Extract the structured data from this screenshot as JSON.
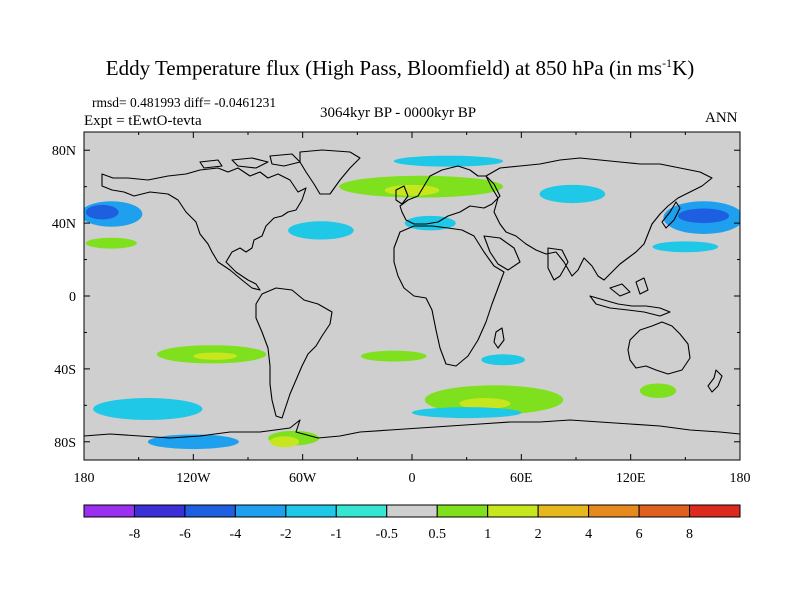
{
  "title": {
    "main": "Eddy Temperature flux (High Pass, Bloomfield) at 850 hPa (in ms",
    "sup": "-1",
    "tail": "K)"
  },
  "stats": {
    "rmsd_diff": "rmsd= 0.481993 diff= -0.0461231",
    "experiment": "Expt = tEwtO-tevta"
  },
  "subtitle": {
    "center": "3064kyr BP - 0000kyr BP",
    "right": "ANN"
  },
  "axes": {
    "lon_labels": [
      "180",
      "120W",
      "60W",
      "0",
      "60E",
      "120E",
      "180"
    ],
    "lat_labels": [
      "80N",
      "40N",
      "0",
      "40S",
      "80S"
    ]
  },
  "chart_data": {
    "type": "heatmap",
    "projection": "cylindrical equidistant",
    "title": "Eddy Temperature flux (High Pass, Bloomfield) at 850 hPa (in ms-1K)",
    "x_range": [
      -180,
      180
    ],
    "y_range": [
      -90,
      90
    ],
    "xticks": [
      -180,
      -120,
      -60,
      0,
      60,
      120,
      180
    ],
    "yticks": [
      80,
      40,
      0,
      -40,
      -80
    ],
    "colorbar": {
      "labels": [
        "-8",
        "-6",
        "-4",
        "-2",
        "-1",
        "-0.5",
        "0.5",
        "1",
        "2",
        "4",
        "6",
        "8"
      ],
      "colors": [
        "#9a2ff0",
        "#3b2fd8",
        "#1d5fe0",
        "#1ea0ee",
        "#1ec8e6",
        "#35e6d2",
        "#cfcfcf",
        "#7fe01e",
        "#c8e61e",
        "#e6b81e",
        "#e68a1e",
        "#e0601e",
        "#dc2b1e"
      ]
    },
    "regions": [
      {
        "name": "north pacific west",
        "center": [
          -165,
          45
        ],
        "half_width": [
          17,
          7
        ],
        "value": -2
      },
      {
        "name": "north pacific west core",
        "center": [
          -170,
          46
        ],
        "half_width": [
          9,
          4
        ],
        "value": -4
      },
      {
        "name": "north pacific 2",
        "center": [
          -165,
          29
        ],
        "half_width": [
          14,
          3
        ],
        "value": 1
      },
      {
        "name": "north pacific east",
        "center": [
          160,
          43
        ],
        "half_width": [
          22,
          9
        ],
        "value": -2
      },
      {
        "name": "north pacific east core",
        "center": [
          160,
          44
        ],
        "half_width": [
          14,
          4
        ],
        "value": -4
      },
      {
        "name": "north pacific east low",
        "center": [
          150,
          27
        ],
        "half_width": [
          18,
          3
        ],
        "value": -1
      },
      {
        "name": "north atlantic band",
        "center": [
          5,
          60
        ],
        "half_width": [
          45,
          6
        ],
        "value": 1
      },
      {
        "name": "north atlantic core",
        "center": [
          0,
          58
        ],
        "half_width": [
          15,
          3
        ],
        "value": 2
      },
      {
        "name": "north atlantic south",
        "center": [
          -50,
          36
        ],
        "half_width": [
          18,
          5
        ],
        "value": -1
      },
      {
        "name": "north atlantic east",
        "center": [
          10,
          40
        ],
        "half_width": [
          14,
          4
        ],
        "value": -1
      },
      {
        "name": "arctic cap",
        "center": [
          20,
          74
        ],
        "half_width": [
          30,
          3
        ],
        "value": -1
      },
      {
        "name": "asia north",
        "center": [
          88,
          56
        ],
        "half_width": [
          18,
          5
        ],
        "value": -1
      },
      {
        "name": "south pacific",
        "center": [
          -110,
          -32
        ],
        "half_width": [
          30,
          5
        ],
        "value": 1
      },
      {
        "name": "south pacific core",
        "center": [
          -108,
          -33
        ],
        "half_width": [
          12,
          2
        ],
        "value": 2
      },
      {
        "name": "south atlantic",
        "center": [
          -10,
          -33
        ],
        "half_width": [
          18,
          3
        ],
        "value": 1
      },
      {
        "name": "southern ocean indian",
        "center": [
          45,
          -57
        ],
        "half_width": [
          38,
          8
        ],
        "value": 1
      },
      {
        "name": "southern ocean indian core",
        "center": [
          40,
          -59
        ],
        "half_width": [
          14,
          3
        ],
        "value": 2
      },
      {
        "name": "southern ocean south",
        "center": [
          30,
          -64
        ],
        "half_width": [
          30,
          3
        ],
        "value": -1
      },
      {
        "name": "south indian",
        "center": [
          50,
          -35
        ],
        "half_width": [
          12,
          3
        ],
        "value": -1
      },
      {
        "name": "southern pacific west",
        "center": [
          -145,
          -62
        ],
        "half_width": [
          30,
          6
        ],
        "value": -1
      },
      {
        "name": "antarctic coast",
        "center": [
          -120,
          -80
        ],
        "half_width": [
          25,
          4
        ],
        "value": -2
      },
      {
        "name": "antarctic core",
        "center": [
          -65,
          -78
        ],
        "half_width": [
          14,
          4
        ],
        "value": 1
      },
      {
        "name": "antarctic weddell",
        "center": [
          -70,
          -80
        ],
        "half_width": [
          8,
          3
        ],
        "value": 2
      },
      {
        "name": "australia south",
        "center": [
          135,
          -52
        ],
        "half_width": [
          10,
          4
        ],
        "value": 1
      }
    ]
  }
}
